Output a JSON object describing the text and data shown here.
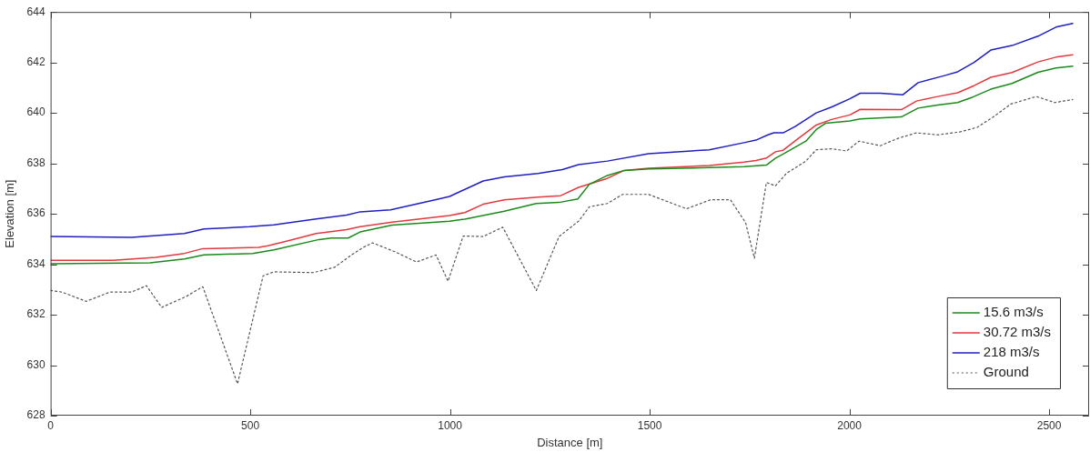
{
  "chart_data": {
    "type": "line",
    "xlabel": "Distance [m]",
    "ylabel": "Elevation [m]",
    "xlim": [
      0,
      2600
    ],
    "xticks": [
      0,
      500,
      1000,
      1500,
      2000,
      2500
    ],
    "ylim": [
      628,
      644
    ],
    "yticks": [
      628,
      630,
      632,
      634,
      636,
      638,
      640,
      642,
      644
    ],
    "grid": false,
    "legend": "bottom right",
    "marker": "none",
    "series": [
      {
        "name": "15.6 m3/s",
        "color": "#1a8a1a",
        "line_style": "solid",
        "x": [
          0,
          249,
          335,
          384,
          506,
          559,
          672,
          703,
          745,
          775,
          855,
          999,
          1037,
          1136,
          1216,
          1273,
          1320,
          1349,
          1394,
          1436,
          1497,
          1649,
          1736,
          1792,
          1815,
          1834,
          1891,
          1917,
          1940,
          2001,
          2027,
          2130,
          2172,
          2221,
          2271,
          2309,
          2354,
          2407,
          2472,
          2517,
          2559
        ],
        "values": [
          634.02,
          634.06,
          634.21,
          634.37,
          634.43,
          634.57,
          634.98,
          635.04,
          635.04,
          635.28,
          635.55,
          635.71,
          635.79,
          636.1,
          636.41,
          636.45,
          636.59,
          637.17,
          637.52,
          637.72,
          637.78,
          637.83,
          637.87,
          637.93,
          638.21,
          638.37,
          638.88,
          639.34,
          639.59,
          639.68,
          639.76,
          639.84,
          640.19,
          640.31,
          640.41,
          640.63,
          640.94,
          641.17,
          641.61,
          641.78,
          641.85
        ]
      },
      {
        "name": "30.72 m3/s",
        "color": "#e0393e",
        "line_style": "solid",
        "x": [
          0,
          157,
          263,
          335,
          381,
          521,
          544,
          597,
          665,
          741,
          775,
          855,
          999,
          1037,
          1083,
          1136,
          1220,
          1277,
          1322,
          1390,
          1436,
          1497,
          1649,
          1736,
          1766,
          1792,
          1815,
          1834,
          1868,
          1917,
          1955,
          2001,
          2027,
          2130,
          2168,
          2221,
          2271,
          2312,
          2354,
          2407,
          2472,
          2517,
          2559
        ],
        "values": [
          634.16,
          634.16,
          634.27,
          634.43,
          634.62,
          634.67,
          634.73,
          634.94,
          635.22,
          635.37,
          635.49,
          635.67,
          635.93,
          636.05,
          636.38,
          636.55,
          636.66,
          636.72,
          637.05,
          637.38,
          637.72,
          637.81,
          637.91,
          638.05,
          638.11,
          638.21,
          638.46,
          638.52,
          638.94,
          639.52,
          639.74,
          639.92,
          640.14,
          640.13,
          640.47,
          640.65,
          640.8,
          641.08,
          641.41,
          641.6,
          642.02,
          642.21,
          642.3
        ]
      },
      {
        "name": "218 m3/s",
        "color": "#1f1fbf",
        "line_style": "solid",
        "x": [
          0,
          203,
          335,
          384,
          498,
          559,
          665,
          741,
          775,
          851,
          965,
          999,
          1083,
          1136,
          1220,
          1281,
          1322,
          1394,
          1497,
          1649,
          1736,
          1766,
          1796,
          1811,
          1834,
          1864,
          1917,
          1955,
          2001,
          2027,
          2077,
          2134,
          2172,
          2236,
          2271,
          2312,
          2354,
          2407,
          2472,
          2517,
          2559
        ],
        "values": [
          635.1,
          635.07,
          635.22,
          635.4,
          635.49,
          635.56,
          635.8,
          635.95,
          636.08,
          636.16,
          636.56,
          636.69,
          637.3,
          637.46,
          637.6,
          637.75,
          637.95,
          638.09,
          638.38,
          638.54,
          638.82,
          638.92,
          639.13,
          639.21,
          639.21,
          639.46,
          640.0,
          640.23,
          640.56,
          640.78,
          640.78,
          640.72,
          641.2,
          641.47,
          641.63,
          642.0,
          642.49,
          642.67,
          643.04,
          643.4,
          643.55
        ]
      },
      {
        "name": "Ground",
        "color": "#555555",
        "line_style": "dotted",
        "x": [
          0,
          28,
          89,
          149,
          203,
          240,
          278,
          339,
          381,
          468,
          494,
          532,
          559,
          658,
          711,
          756,
          783,
          806,
          863,
          916,
          965,
          995,
          1033,
          1083,
          1132,
          1216,
          1273,
          1322,
          1349,
          1394,
          1432,
          1497,
          1592,
          1653,
          1702,
          1740,
          1762,
          1792,
          1815,
          1842,
          1891,
          1917,
          1955,
          1993,
          2024,
          2077,
          2123,
          2168,
          2221,
          2278,
          2320,
          2362,
          2404,
          2468,
          2514,
          2559
        ],
        "values": [
          632.96,
          632.9,
          632.53,
          632.9,
          632.9,
          633.15,
          632.29,
          632.72,
          633.11,
          629.26,
          631.0,
          633.54,
          633.7,
          633.67,
          633.88,
          634.4,
          634.67,
          634.85,
          634.49,
          634.09,
          634.37,
          633.33,
          635.12,
          635.1,
          635.47,
          632.96,
          635.1,
          635.71,
          636.28,
          636.41,
          636.77,
          636.77,
          636.2,
          636.56,
          636.56,
          635.65,
          634.24,
          637.24,
          637.11,
          637.6,
          638.09,
          638.54,
          638.58,
          638.49,
          638.88,
          638.7,
          639.0,
          639.21,
          639.13,
          639.25,
          639.43,
          639.86,
          640.35,
          640.65,
          640.41,
          640.53
        ]
      }
    ]
  }
}
